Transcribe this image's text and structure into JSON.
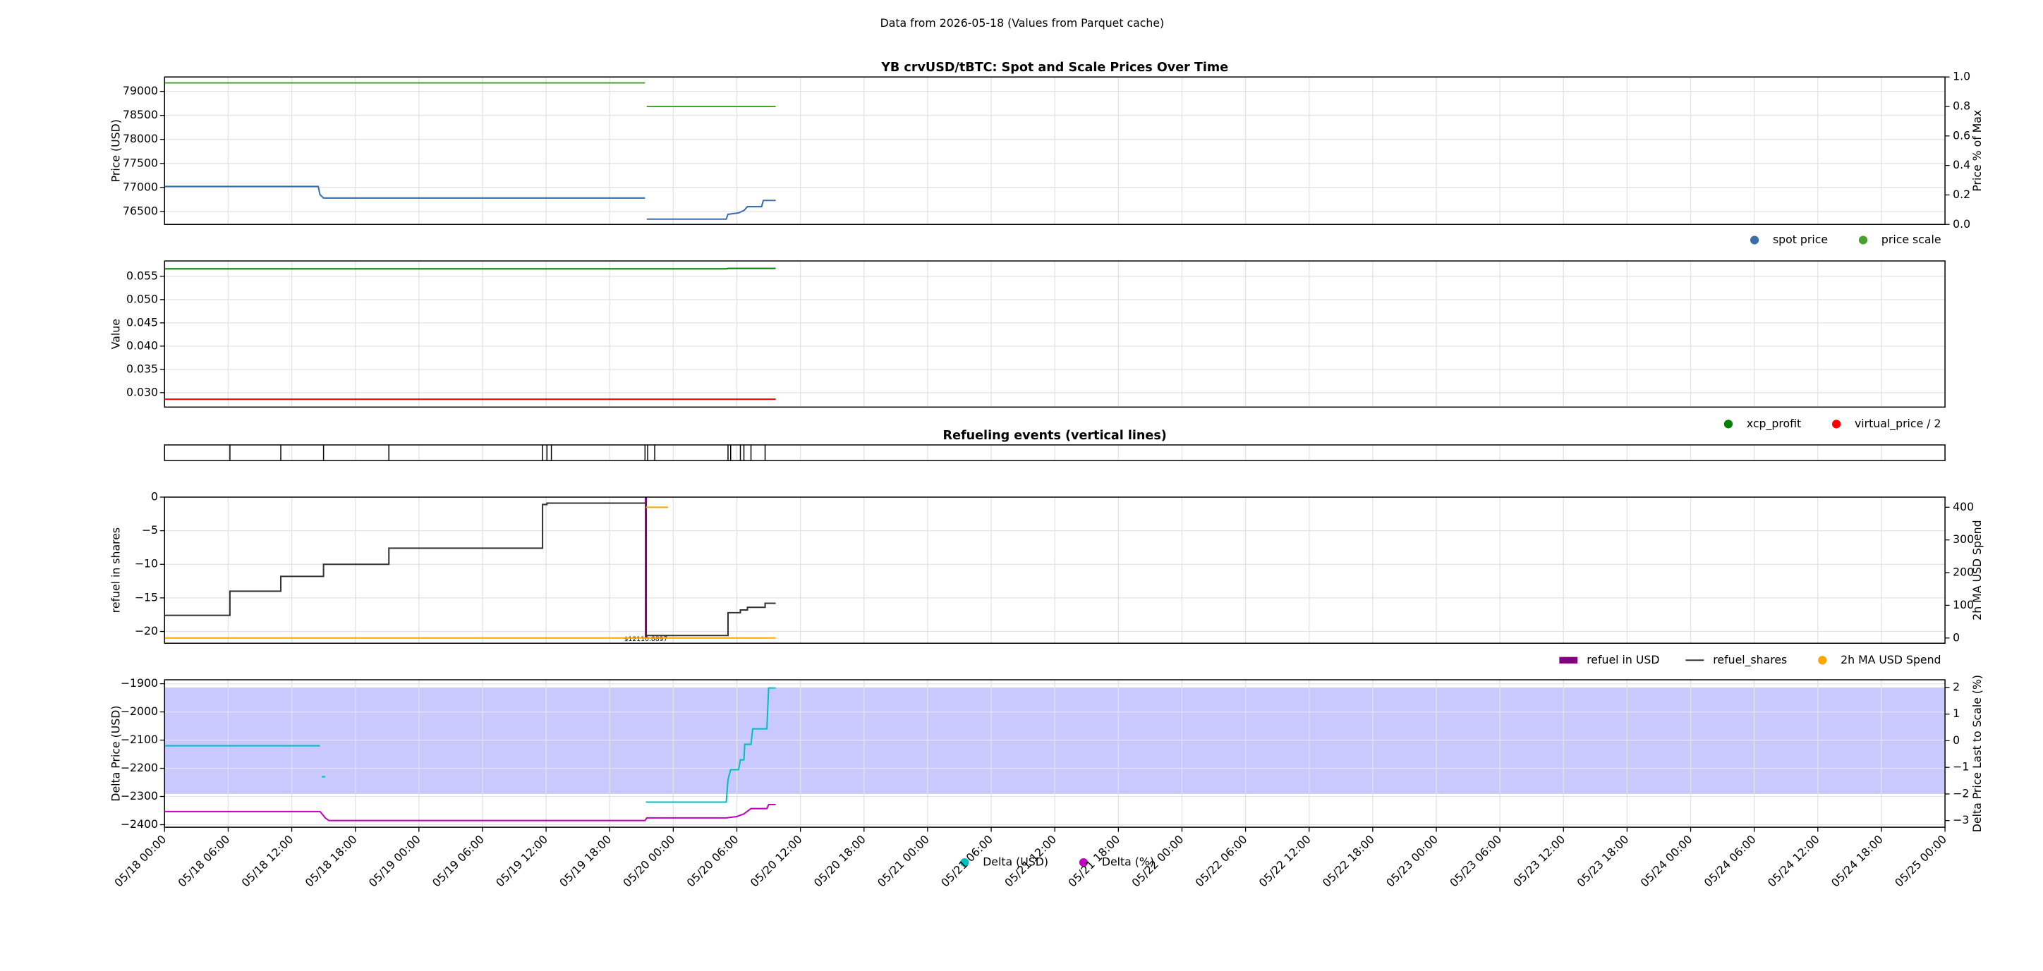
{
  "title": "Data from 2026-05-18 (Values from Parquet cache)",
  "chart_data": [
    {
      "type": "line",
      "title": "YB crvUSD/tBTC: Spot and Scale Prices Over Time",
      "ylabel": "Price (USD)",
      "y2label": "Price % of Max",
      "ylim": [
        76230,
        79300
      ],
      "yticks": [
        76500,
        77000,
        77500,
        78000,
        78500,
        79000
      ],
      "y2lim": [
        0,
        1
      ],
      "y2ticks": [
        {
          "value": 0,
          "label": "0.0"
        },
        0.2,
        0.4,
        0.6,
        0.8,
        {
          "value": 1,
          "label": "1.0"
        }
      ],
      "grid": true,
      "legend": "below right",
      "series": [
        {
          "name": "spot price",
          "color": "#3b6ea8",
          "axis": "y",
          "marker": "dot",
          "x": [
            "05/18 00:00",
            "05/18 14:30",
            "05/18 14:40",
            "05/18 15:00",
            "05/19 21:20",
            "05/19 21:30",
            "05/19 21:30",
            "05/20 05:00",
            "05/20 05:10",
            "05/20 06:10",
            "05/20 06:40",
            "05/20 07:00",
            "05/20 08:20",
            "05/20 08:30",
            "05/20 09:40"
          ],
          "values": [
            77020,
            77020,
            76850,
            76780,
            76780,
            null,
            76340,
            76340,
            76440,
            76470,
            76520,
            76600,
            76600,
            76730,
            76730
          ]
        },
        {
          "name": "price scale",
          "color": "#4aa02c",
          "axis": "y2",
          "marker": "dot",
          "x": [
            "05/18 00:00",
            "05/19 21:20",
            "05/19 21:30",
            "05/19 21:30",
            "05/20 09:40"
          ],
          "values": [
            0.96,
            0.96,
            null,
            0.8,
            0.8
          ]
        }
      ]
    },
    {
      "type": "line",
      "ylabel": "Value",
      "ylim": [
        0.0269,
        0.0583
      ],
      "yticks": [
        {
          "value": 0.03,
          "label": "0.030"
        },
        0.035,
        {
          "value": 0.04,
          "label": "0.040"
        },
        0.045,
        {
          "value": 0.05,
          "label": "0.050"
        },
        0.055
      ],
      "grid": true,
      "legend": "below right",
      "series": [
        {
          "name": "xcp_profit",
          "color": "#008000",
          "axis": "y",
          "marker": "dot",
          "x": [
            "05/18 00:00",
            "05/20 05:00",
            "05/20 05:10",
            "05/20 09:40"
          ],
          "values": [
            0.0566,
            0.0566,
            0.0567,
            0.0567
          ]
        },
        {
          "name": "virtual_price / 2",
          "color": "#ff0000",
          "axis": "y",
          "marker": "dot",
          "x": [
            "05/18 00:00",
            "05/20 09:40"
          ],
          "values": [
            0.0286,
            0.0286
          ]
        }
      ]
    },
    {
      "type": "event",
      "title": "Refueling events (vertical lines)",
      "color": "#000000",
      "grid": true,
      "x": [
        "05/18 06:10",
        "05/18 10:58",
        "05/18 15:00",
        "05/18 21:10",
        "05/19 11:40",
        "05/19 12:05",
        "05/19 12:30",
        "05/19 21:20",
        "05/19 21:35",
        "05/19 22:15",
        "05/20 05:10",
        "05/20 05:25",
        "05/20 06:20",
        "05/20 06:40",
        "05/20 07:20",
        "05/20 08:40"
      ]
    },
    {
      "type": "line",
      "ylabel": "refuel in shares",
      "y2label": "2h MA USD Spend",
      "y2label_color": "#ffa500",
      "ylim": [
        -21.75,
        0
      ],
      "yticks": [
        {
          "value": -20,
          "label": "−20"
        },
        {
          "value": -15,
          "label": "−15"
        },
        {
          "value": -10,
          "label": "−10"
        },
        {
          "value": -5,
          "label": "−5"
        },
        0
      ],
      "y2lim": [
        -16,
        431
      ],
      "y2ticks": [
        0,
        100,
        200,
        300,
        400
      ],
      "grid": true,
      "legend": "below right",
      "series": [
        {
          "name": "refuel in USD",
          "type": "bar",
          "color": "#800080",
          "axis": "y2",
          "marker": "box",
          "x": [
            "05/19 21:25"
          ],
          "values": [
            12110.8897
          ],
          "value_labels": [
            "$12110.8897"
          ]
        },
        {
          "name": "refuel_shares",
          "color": "#333333",
          "axis": "y",
          "marker": "line",
          "x": [
            "05/18 00:00",
            "05/18 06:10",
            "05/18 06:10",
            "05/18 10:58",
            "05/18 10:58",
            "05/18 15:00",
            "05/18 15:00",
            "05/18 21:10",
            "05/18 21:10",
            "05/19 11:40",
            "05/19 11:40",
            "05/19 12:05",
            "05/19 12:05",
            "05/19 21:25",
            "05/19 21:25",
            "05/20 05:10",
            "05/20 05:10",
            "05/20 06:20",
            "05/20 06:20",
            "05/20 07:00",
            "05/20 07:00",
            "05/20 08:40",
            "05/20 08:40",
            "05/20 09:40"
          ],
          "values": [
            -17.6,
            -17.6,
            -14,
            -14,
            -11.8,
            -11.8,
            -10,
            -10,
            -7.6,
            -7.6,
            -1.1,
            -1.1,
            -0.9,
            -0.9,
            -20.6,
            -20.6,
            -17.2,
            -17.2,
            -16.8,
            -16.8,
            -16.4,
            -16.4,
            -15.8,
            -15.8
          ]
        },
        {
          "name": "2h MA USD Spend",
          "color": "#ffa500",
          "axis": "y2",
          "marker": "dot",
          "x": [
            "05/18 00:00",
            "05/20 09:40",
            "05/19 21:25",
            "05/19 21:25",
            "05/19 23:30"
          ],
          "values": [
            0,
            0,
            null,
            400,
            400
          ]
        }
      ]
    },
    {
      "type": "line",
      "ylabel": "Delta Price (USD)",
      "ylabel_color": "#00bfbf",
      "y2label": "Delta Price Last to Scale (%)",
      "y2label_color": "#bf00bf",
      "ylim": [
        -2409,
        -1886
      ],
      "yticks": [
        {
          "value": -2400,
          "label": "−2400"
        },
        {
          "value": -2300,
          "label": "−2300"
        },
        {
          "value": -2200,
          "label": "−2200"
        },
        {
          "value": -2100,
          "label": "−2100"
        },
        {
          "value": -2000,
          "label": "−2000"
        },
        {
          "value": -1900,
          "label": "−1900"
        }
      ],
      "y2lim": [
        -3.25,
        2.29
      ],
      "y2ticks": [
        {
          "value": -3,
          "label": "−3"
        },
        {
          "value": -2,
          "label": "−2"
        },
        {
          "value": -1,
          "label": "−1"
        },
        0,
        1,
        2
      ],
      "band": [
        -2,
        2
      ],
      "band_color": "#c9c9ff",
      "grid": true,
      "legend": "below center",
      "xlim": [
        "05/18 00:00",
        "05/25 00:00"
      ],
      "xticks": [
        "05/18 00:00",
        "05/18 06:00",
        "05/18 12:00",
        "05/18 18:00",
        "05/19 00:00",
        "05/19 06:00",
        "05/19 12:00",
        "05/19 18:00",
        "05/20 00:00",
        "05/20 06:00",
        "05/20 12:00",
        "05/20 18:00",
        "05/21 00:00",
        "05/21 06:00",
        "05/21 12:00",
        "05/21 18:00",
        "05/22 00:00",
        "05/22 06:00",
        "05/22 12:00",
        "05/22 18:00",
        "05/23 00:00",
        "05/23 06:00",
        "05/23 12:00",
        "05/23 18:00",
        "05/24 00:00",
        "05/24 06:00",
        "05/24 12:00",
        "05/24 18:00",
        "05/25 00:00"
      ],
      "series": [
        {
          "name": "Delta (USD)",
          "color": "#00bfbf",
          "axis": "y",
          "marker": "dot",
          "x": [
            "05/18 00:00",
            "05/18 14:40",
            "05/18 14:50",
            "05/18 14:50",
            "05/18 15:10",
            "05/18 15:10",
            "05/19 21:25",
            "05/20 05:00",
            "05/20 05:10",
            "05/20 05:25",
            "05/20 06:10",
            "05/20 06:20",
            "05/20 06:40",
            "05/20 06:45",
            "05/20 07:20",
            "05/20 07:30",
            "05/20 08:50",
            "05/20 09:00",
            "05/20 09:40"
          ],
          "values": [
            -2120,
            -2120,
            null,
            -2230,
            -2230,
            null,
            -2320,
            -2320,
            -2240,
            -2205,
            -2205,
            -2170,
            -2170,
            -2115,
            -2115,
            -2060,
            -2060,
            -1915,
            -1915
          ]
        },
        {
          "name": "Delta (%)",
          "color": "#bf00bf",
          "axis": "y2",
          "marker": "dot",
          "x": [
            "05/18 00:00",
            "05/18 14:40",
            "05/18 15:10",
            "05/18 15:30",
            "05/19 21:20",
            "05/19 21:30",
            "05/20 05:00",
            "05/20 06:00",
            "05/20 06:40",
            "05/20 07:20",
            "05/20 08:50",
            "05/20 09:00",
            "05/20 09:40"
          ],
          "values": [
            -2.66,
            -2.66,
            -2.9,
            -3.0,
            -3.0,
            -2.9,
            -2.9,
            -2.85,
            -2.75,
            -2.55,
            -2.55,
            -2.4,
            -2.4
          ]
        }
      ]
    }
  ]
}
